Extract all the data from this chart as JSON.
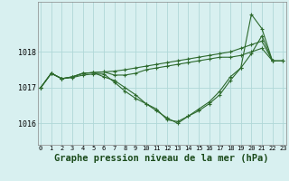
{
  "background_color": "#d8f0f0",
  "grid_color": "#b0d8d8",
  "line_color": "#2d6a2d",
  "marker_color": "#2d6a2d",
  "title": "Graphe pression niveau de la mer (hPa)",
  "title_fontsize": 7.5,
  "xlabel_ticks": [
    "0",
    "1",
    "2",
    "3",
    "4",
    "5",
    "6",
    "7",
    "8",
    "9",
    "10",
    "11",
    "12",
    "13",
    "14",
    "15",
    "16",
    "17",
    "18",
    "19",
    "20",
    "21",
    "22",
    "23"
  ],
  "yticks": [
    1016,
    1017,
    1018
  ],
  "ylim": [
    1015.4,
    1019.4
  ],
  "xlim": [
    -0.3,
    23.3
  ],
  "series": [
    [
      1017.0,
      1017.4,
      1017.25,
      1017.3,
      1017.4,
      1017.42,
      1017.44,
      1017.46,
      1017.5,
      1017.55,
      1017.6,
      1017.65,
      1017.7,
      1017.75,
      1017.8,
      1017.85,
      1017.9,
      1017.95,
      1018.0,
      1018.1,
      1018.2,
      1018.3,
      1017.75,
      1017.75
    ],
    [
      1017.0,
      1017.4,
      1017.25,
      1017.3,
      1017.4,
      1017.42,
      1017.44,
      1017.35,
      1017.35,
      1017.4,
      1017.5,
      1017.55,
      1017.6,
      1017.65,
      1017.7,
      1017.75,
      1017.8,
      1017.85,
      1017.85,
      1017.9,
      1018.0,
      1018.1,
      1017.75,
      1017.75
    ],
    [
      1017.0,
      1017.4,
      1017.25,
      1017.28,
      1017.35,
      1017.38,
      1017.38,
      1017.15,
      1016.9,
      1016.7,
      1016.55,
      1016.4,
      1016.1,
      1016.05,
      1016.2,
      1016.4,
      1016.6,
      1016.9,
      1017.3,
      1017.55,
      1019.05,
      1018.65,
      1017.75,
      null
    ],
    [
      1017.0,
      1017.4,
      1017.25,
      1017.3,
      1017.4,
      1017.42,
      1017.3,
      1017.2,
      1017.0,
      1016.8,
      1016.55,
      1016.35,
      1016.15,
      1016.0,
      1016.2,
      1016.35,
      1016.55,
      1016.8,
      1017.2,
      1017.55,
      1017.95,
      1018.45,
      1017.75,
      null
    ]
  ]
}
